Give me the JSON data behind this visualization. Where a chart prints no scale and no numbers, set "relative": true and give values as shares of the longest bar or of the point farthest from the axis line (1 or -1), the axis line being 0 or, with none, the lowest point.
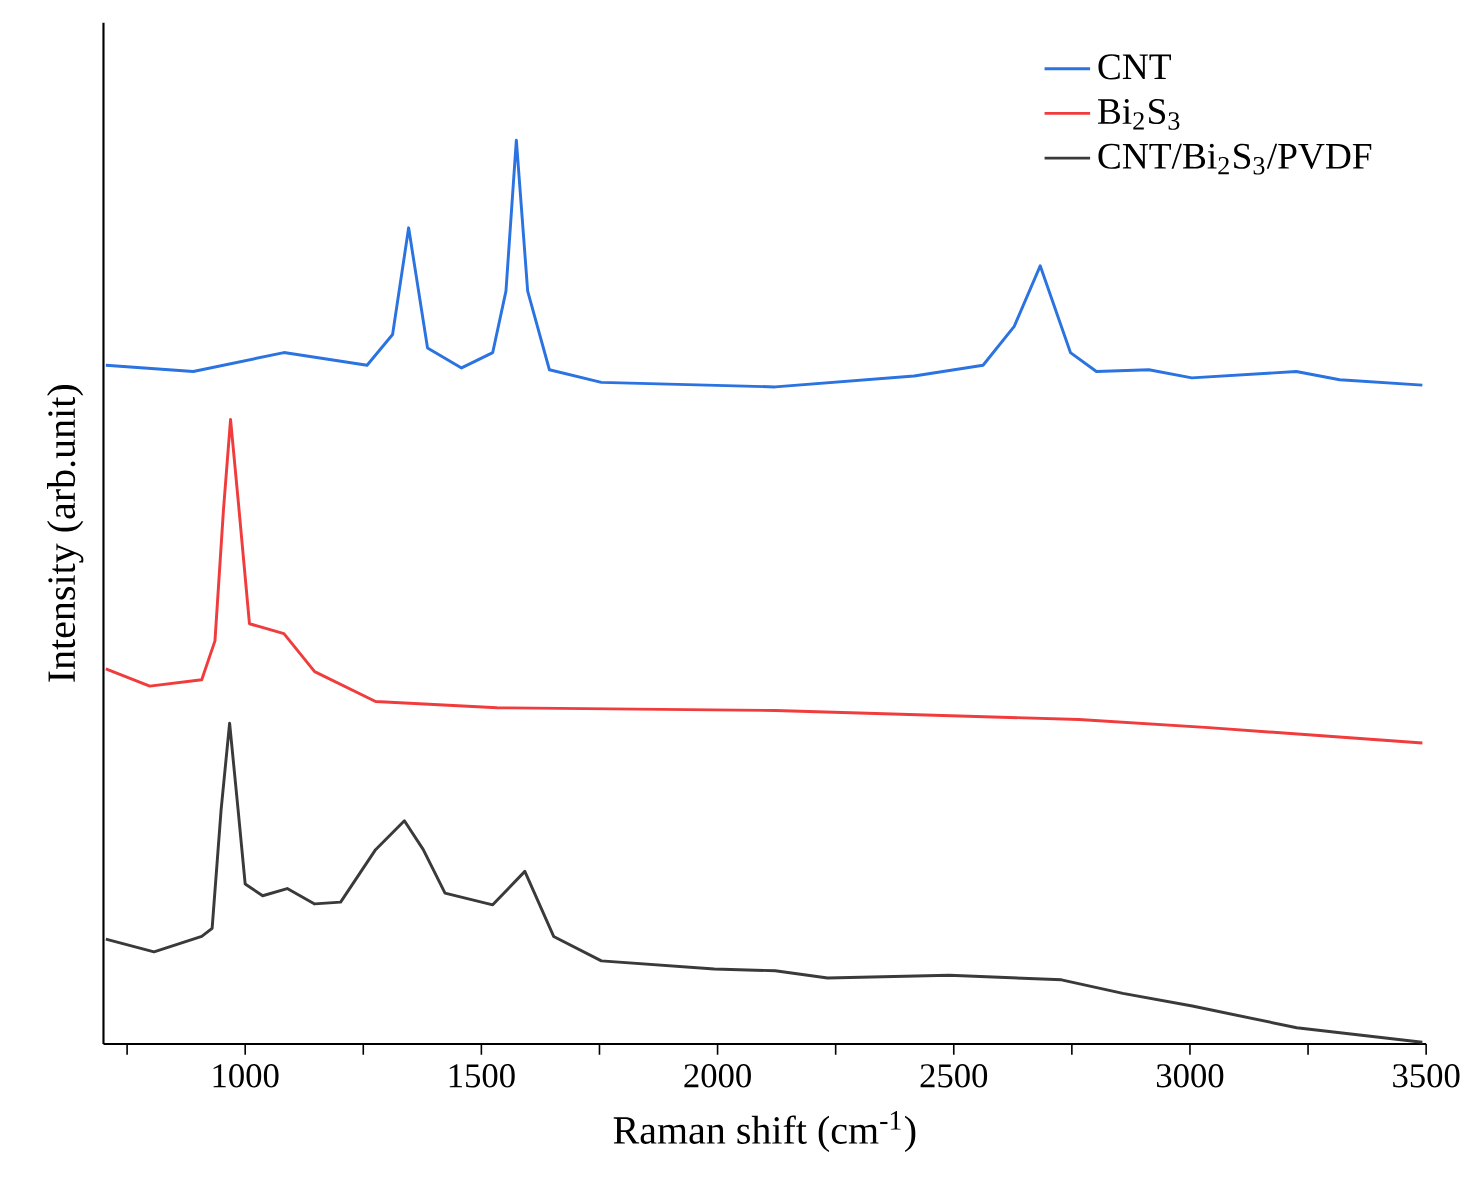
{
  "chart_data": {
    "type": "line",
    "xlabel": "Raman shift (cm$^{-1}$)",
    "ylabel": "Intensity (arb.unit)",
    "relative": true,
    "xlim": [
      700,
      3500
    ],
    "xticks": [
      {
        "value": 750,
        "label": null
      },
      1000,
      {
        "value": 1250,
        "label": null
      },
      1500,
      {
        "value": 1750,
        "label": null
      },
      2000,
      {
        "value": 2250,
        "label": null
      },
      2500,
      {
        "value": 2750,
        "label": null
      },
      3000,
      {
        "value": 3250,
        "label": null
      },
      3500
    ],
    "legend": "top right",
    "marker": "none",
    "line_style": "solid",
    "grid": false,
    "series": [
      {
        "name": "CNT",
        "color": "#2a73e0",
        "x": [
          705,
          890,
          1082,
          1258,
          1312,
          1346,
          1386,
          1458,
          1524,
          1552,
          1574,
          1598,
          1644,
          1754,
          2122,
          2416,
          2562,
          2628,
          2683,
          2747,
          2802,
          2913,
          3004,
          3225,
          3317,
          3492
        ],
        "values": [
          0.751,
          0.744,
          0.765,
          0.751,
          0.785,
          0.903,
          0.77,
          0.748,
          0.765,
          0.833,
          1,
          0.833,
          0.746,
          0.732,
          0.727,
          0.739,
          0.751,
          0.794,
          0.861,
          0.765,
          0.744,
          0.746,
          0.737,
          0.744,
          0.735,
          0.729
        ]
      },
      {
        "name": "Bi$_{2}$S$_{3}$",
        "color": "#f03c3c",
        "x": [
          705,
          798,
          908,
          936,
          954,
          969,
          987,
          1009,
          1082,
          1147,
          1276,
          1533,
          2122,
          2765,
          3040,
          3492
        ],
        "values": [
          0.415,
          0.396,
          0.403,
          0.446,
          0.591,
          0.691,
          0.591,
          0.465,
          0.454,
          0.412,
          0.379,
          0.372,
          0.369,
          0.359,
          0.35,
          0.333
        ]
      },
      {
        "name": "CNT/Bi$_{2}$S$_{3}$/PVDF",
        "color": "#3a3a3a",
        "x": [
          705,
          807,
          908,
          930,
          949,
          967,
          985,
          1000,
          1037,
          1089,
          1147,
          1202,
          1276,
          1337,
          1377,
          1423,
          1524,
          1592,
          1653,
          1754,
          1993,
          2122,
          2233,
          2490,
          2728,
          2858,
          3005,
          3226,
          3492
        ],
        "values": [
          0.116,
          0.102,
          0.119,
          0.128,
          0.259,
          0.355,
          0.259,
          0.177,
          0.164,
          0.172,
          0.155,
          0.157,
          0.215,
          0.247,
          0.215,
          0.167,
          0.154,
          0.191,
          0.119,
          0.092,
          0.083,
          0.081,
          0.073,
          0.076,
          0.071,
          0.056,
          0.042,
          0.018,
          0.002
        ]
      }
    ]
  }
}
